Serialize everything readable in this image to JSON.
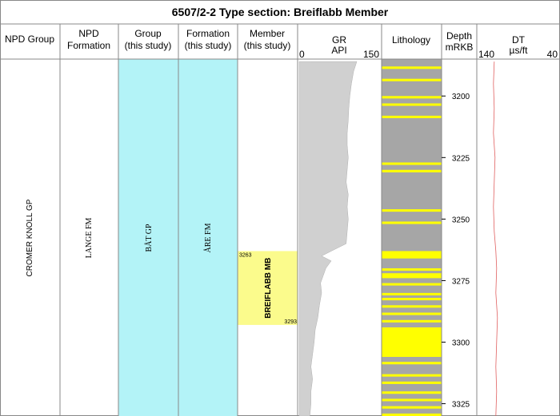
{
  "title": "6507/2-2 Type section: Breiflabb Member",
  "headers": {
    "npd_group": [
      "NPD Group"
    ],
    "npd_formation": [
      "NPD",
      "Formation"
    ],
    "group": [
      "Group",
      "(this study)"
    ],
    "formation": [
      "Formation",
      "(this study)"
    ],
    "member": [
      "Member",
      "(this study)"
    ],
    "gr": {
      "title": "GR",
      "unit": "API",
      "min": "0",
      "max": "150"
    },
    "lithology": [
      "Lithology"
    ],
    "depth": [
      "Depth",
      "mRKB"
    ],
    "dt": {
      "title": "DT",
      "unit": "µs/ft",
      "min": "140",
      "max": "40"
    }
  },
  "units": {
    "npd_group": "CROMER KNOLL GP",
    "npd_formation": "LANGE FM",
    "group": "BÅT GP",
    "formation": "ÅRE FM",
    "member": {
      "name": "BREIFLABB MB",
      "top": 3263,
      "base": 3293,
      "top_label": "3263",
      "base_label": "3293"
    }
  },
  "colors": {
    "group_fill": "#b3f3f7",
    "member_fill": "#fbfb8c",
    "gr_fill": "#d0d0d0",
    "shale": "#a6a6a6",
    "sand": "#ffff00",
    "dt_line": "#e06060"
  },
  "chart_data": {
    "type": "well-log",
    "depth_axis": {
      "label": "mRKB",
      "range": [
        3185,
        3330
      ],
      "ticks": [
        3200,
        3225,
        3250,
        3275,
        3300,
        3325
      ]
    },
    "gr": {
      "range": [
        0,
        150
      ],
      "depth": [
        3186,
        3190,
        3195,
        3200,
        3205,
        3210,
        3215,
        3220,
        3225,
        3230,
        3235,
        3240,
        3245,
        3250,
        3255,
        3260,
        3263,
        3265,
        3267,
        3270,
        3273,
        3276,
        3280,
        3285,
        3290,
        3295,
        3300,
        3305,
        3310,
        3315,
        3320,
        3325,
        3330
      ],
      "value": [
        108,
        102,
        98,
        95,
        93,
        92,
        90,
        90,
        92,
        90,
        88,
        92,
        90,
        92,
        90,
        88,
        60,
        42,
        60,
        50,
        45,
        40,
        42,
        38,
        35,
        30,
        28,
        25,
        22,
        25,
        22,
        22,
        20
      ]
    },
    "dt": {
      "range": [
        140,
        40
      ],
      "depth": [
        3186,
        3195,
        3205,
        3215,
        3225,
        3235,
        3245,
        3255,
        3263,
        3270,
        3280,
        3290,
        3300,
        3310,
        3320,
        3330
      ],
      "value": [
        120,
        121,
        120,
        121,
        119,
        120,
        121,
        120,
        118,
        117,
        118,
        116,
        117,
        118,
        117,
        118
      ]
    },
    "lithology_sand": [
      [
        3188,
        3189
      ],
      [
        3193,
        3194
      ],
      [
        3200,
        3201
      ],
      [
        3203,
        3204
      ],
      [
        3208,
        3209
      ],
      [
        3227,
        3228
      ],
      [
        3230,
        3231
      ],
      [
        3246,
        3247
      ],
      [
        3251,
        3252
      ],
      [
        3263,
        3266
      ],
      [
        3270,
        3271
      ],
      [
        3272,
        3274
      ],
      [
        3276,
        3277
      ],
      [
        3280,
        3281
      ],
      [
        3282,
        3283
      ],
      [
        3285,
        3286
      ],
      [
        3288,
        3289
      ],
      [
        3291,
        3292
      ],
      [
        3294,
        3306
      ],
      [
        3308,
        3309
      ],
      [
        3313,
        3314
      ],
      [
        3316,
        3317
      ],
      [
        3320,
        3321
      ],
      [
        3323,
        3324
      ],
      [
        3326,
        3327
      ],
      [
        3329,
        3330
      ]
    ]
  }
}
